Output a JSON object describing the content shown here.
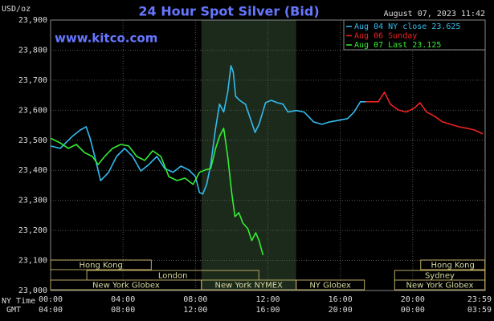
{
  "chart_data": {
    "type": "line",
    "title": "24 Hour Spot Silver (Bid)",
    "unit_label": "USD/oz",
    "timestamp": "August 07, 2023 11:42",
    "watermark": "www.kitco.com",
    "x_axis_labels": [
      "NY Time",
      "GMT"
    ],
    "xlim": [
      0,
      24
    ],
    "xticks": [
      {
        "value": 0,
        "label": "00:00"
      },
      {
        "value": 4,
        "label": "04:00"
      },
      {
        "value": 8,
        "label": "08:00"
      },
      {
        "value": 12,
        "label": "12:00"
      },
      {
        "value": 16,
        "label": "16:00"
      },
      {
        "value": 20,
        "label": "20:00"
      },
      {
        "value": 23.983,
        "label": "23:59"
      }
    ],
    "gmt_labels": [
      "04:00",
      "08:00",
      "12:00",
      "16:00",
      "20:00",
      "00:00",
      "03:59"
    ],
    "ylim": [
      23.0,
      23.9
    ],
    "yticks": [
      {
        "value": 23.0,
        "label": "23,000"
      },
      {
        "value": 23.1,
        "label": "23,100"
      },
      {
        "value": 23.2,
        "label": "23,200"
      },
      {
        "value": 23.3,
        "label": "23,300"
      },
      {
        "value": 23.4,
        "label": "23,400"
      },
      {
        "value": 23.5,
        "label": "23,500"
      },
      {
        "value": 23.6,
        "label": "23,600"
      },
      {
        "value": 23.7,
        "label": "23,700"
      },
      {
        "value": 23.8,
        "label": "23,800"
      },
      {
        "value": 23.9,
        "label": "23,900"
      }
    ],
    "grid": true,
    "shade": [
      8.33,
      13.56
    ],
    "session_rows": [
      [
        {
          "name": "Hong Kong",
          "start": 0,
          "end": 5.56
        },
        {
          "name": "Hong Kong",
          "start": 20.44,
          "end": 23.983
        }
      ],
      [
        {
          "name": "London",
          "start": 2.0,
          "end": 11.5
        },
        {
          "name": "Sydney",
          "start": 19.0,
          "end": 23.983
        }
      ],
      [
        {
          "name": "New York Globex",
          "start": 0,
          "end": 8.33
        },
        {
          "name": "New York NYMEX",
          "start": 8.33,
          "end": 13.56
        },
        {
          "name": "NY Globex",
          "start": 13.56,
          "end": 17.33
        },
        {
          "name": "New York Globex",
          "start": 19.0,
          "end": 23.983
        }
      ]
    ],
    "series": [
      {
        "name": "Aug 04 NY close 23.625",
        "color": "#33bbee",
        "x": [
          0,
          0.53,
          1.2,
          1.64,
          1.96,
          2.18,
          2.44,
          2.76,
          2.98,
          3.2,
          3.64,
          4.09,
          4.53,
          4.98,
          5.42,
          5.87,
          6.31,
          6.76,
          7.2,
          7.64,
          8.0,
          8.22,
          8.4,
          8.62,
          8.84,
          9.11,
          9.33,
          9.56,
          9.78,
          9.96,
          10.09,
          10.22,
          10.44,
          10.76,
          11.07,
          11.29,
          11.51,
          11.87,
          12.18,
          12.53,
          12.84,
          13.11,
          13.56,
          14.0,
          14.53,
          14.98,
          15.42,
          15.87,
          16.4,
          16.76,
          17.11,
          17.42
        ],
        "values": [
          23.481,
          23.473,
          23.513,
          23.534,
          23.545,
          23.507,
          23.446,
          23.366,
          23.379,
          23.393,
          23.446,
          23.473,
          23.446,
          23.398,
          23.419,
          23.446,
          23.406,
          23.393,
          23.414,
          23.401,
          23.379,
          23.326,
          23.321,
          23.353,
          23.419,
          23.54,
          23.62,
          23.594,
          23.66,
          23.748,
          23.727,
          23.646,
          23.633,
          23.62,
          23.566,
          23.526,
          23.553,
          23.625,
          23.633,
          23.625,
          23.62,
          23.594,
          23.599,
          23.594,
          23.561,
          23.553,
          23.561,
          23.566,
          23.572,
          23.594,
          23.628,
          23.628
        ]
      },
      {
        "name": "Aug 06 Sunday",
        "color": "#ee2222",
        "x": [
          17.42,
          18.09,
          18.44,
          18.76,
          19.2,
          19.64,
          20.09,
          20.4,
          20.76,
          21.2,
          21.64,
          22.09,
          22.53,
          22.98,
          23.42,
          23.87
        ],
        "values": [
          23.628,
          23.628,
          23.66,
          23.62,
          23.601,
          23.594,
          23.607,
          23.625,
          23.594,
          23.58,
          23.561,
          23.553,
          23.545,
          23.54,
          23.534,
          23.521
        ]
      },
      {
        "name": "Aug 07 Last 23.125",
        "color": "#33ee33",
        "x": [
          0,
          0.53,
          0.98,
          1.42,
          1.87,
          2.31,
          2.62,
          2.98,
          3.42,
          3.87,
          4.31,
          4.76,
          5.2,
          5.64,
          6.09,
          6.53,
          6.98,
          7.42,
          7.87,
          8.22,
          8.53,
          8.84,
          9.11,
          9.33,
          9.56,
          9.78,
          10.0,
          10.18,
          10.4,
          10.62,
          10.89,
          11.11,
          11.33,
          11.51,
          11.73
        ],
        "values": [
          23.507,
          23.491,
          23.473,
          23.486,
          23.459,
          23.446,
          23.419,
          23.446,
          23.473,
          23.486,
          23.481,
          23.446,
          23.433,
          23.465,
          23.446,
          23.379,
          23.366,
          23.374,
          23.353,
          23.393,
          23.401,
          23.406,
          23.473,
          23.513,
          23.54,
          23.446,
          23.326,
          23.246,
          23.259,
          23.224,
          23.206,
          23.166,
          23.192,
          23.166,
          23.118
        ]
      }
    ]
  }
}
